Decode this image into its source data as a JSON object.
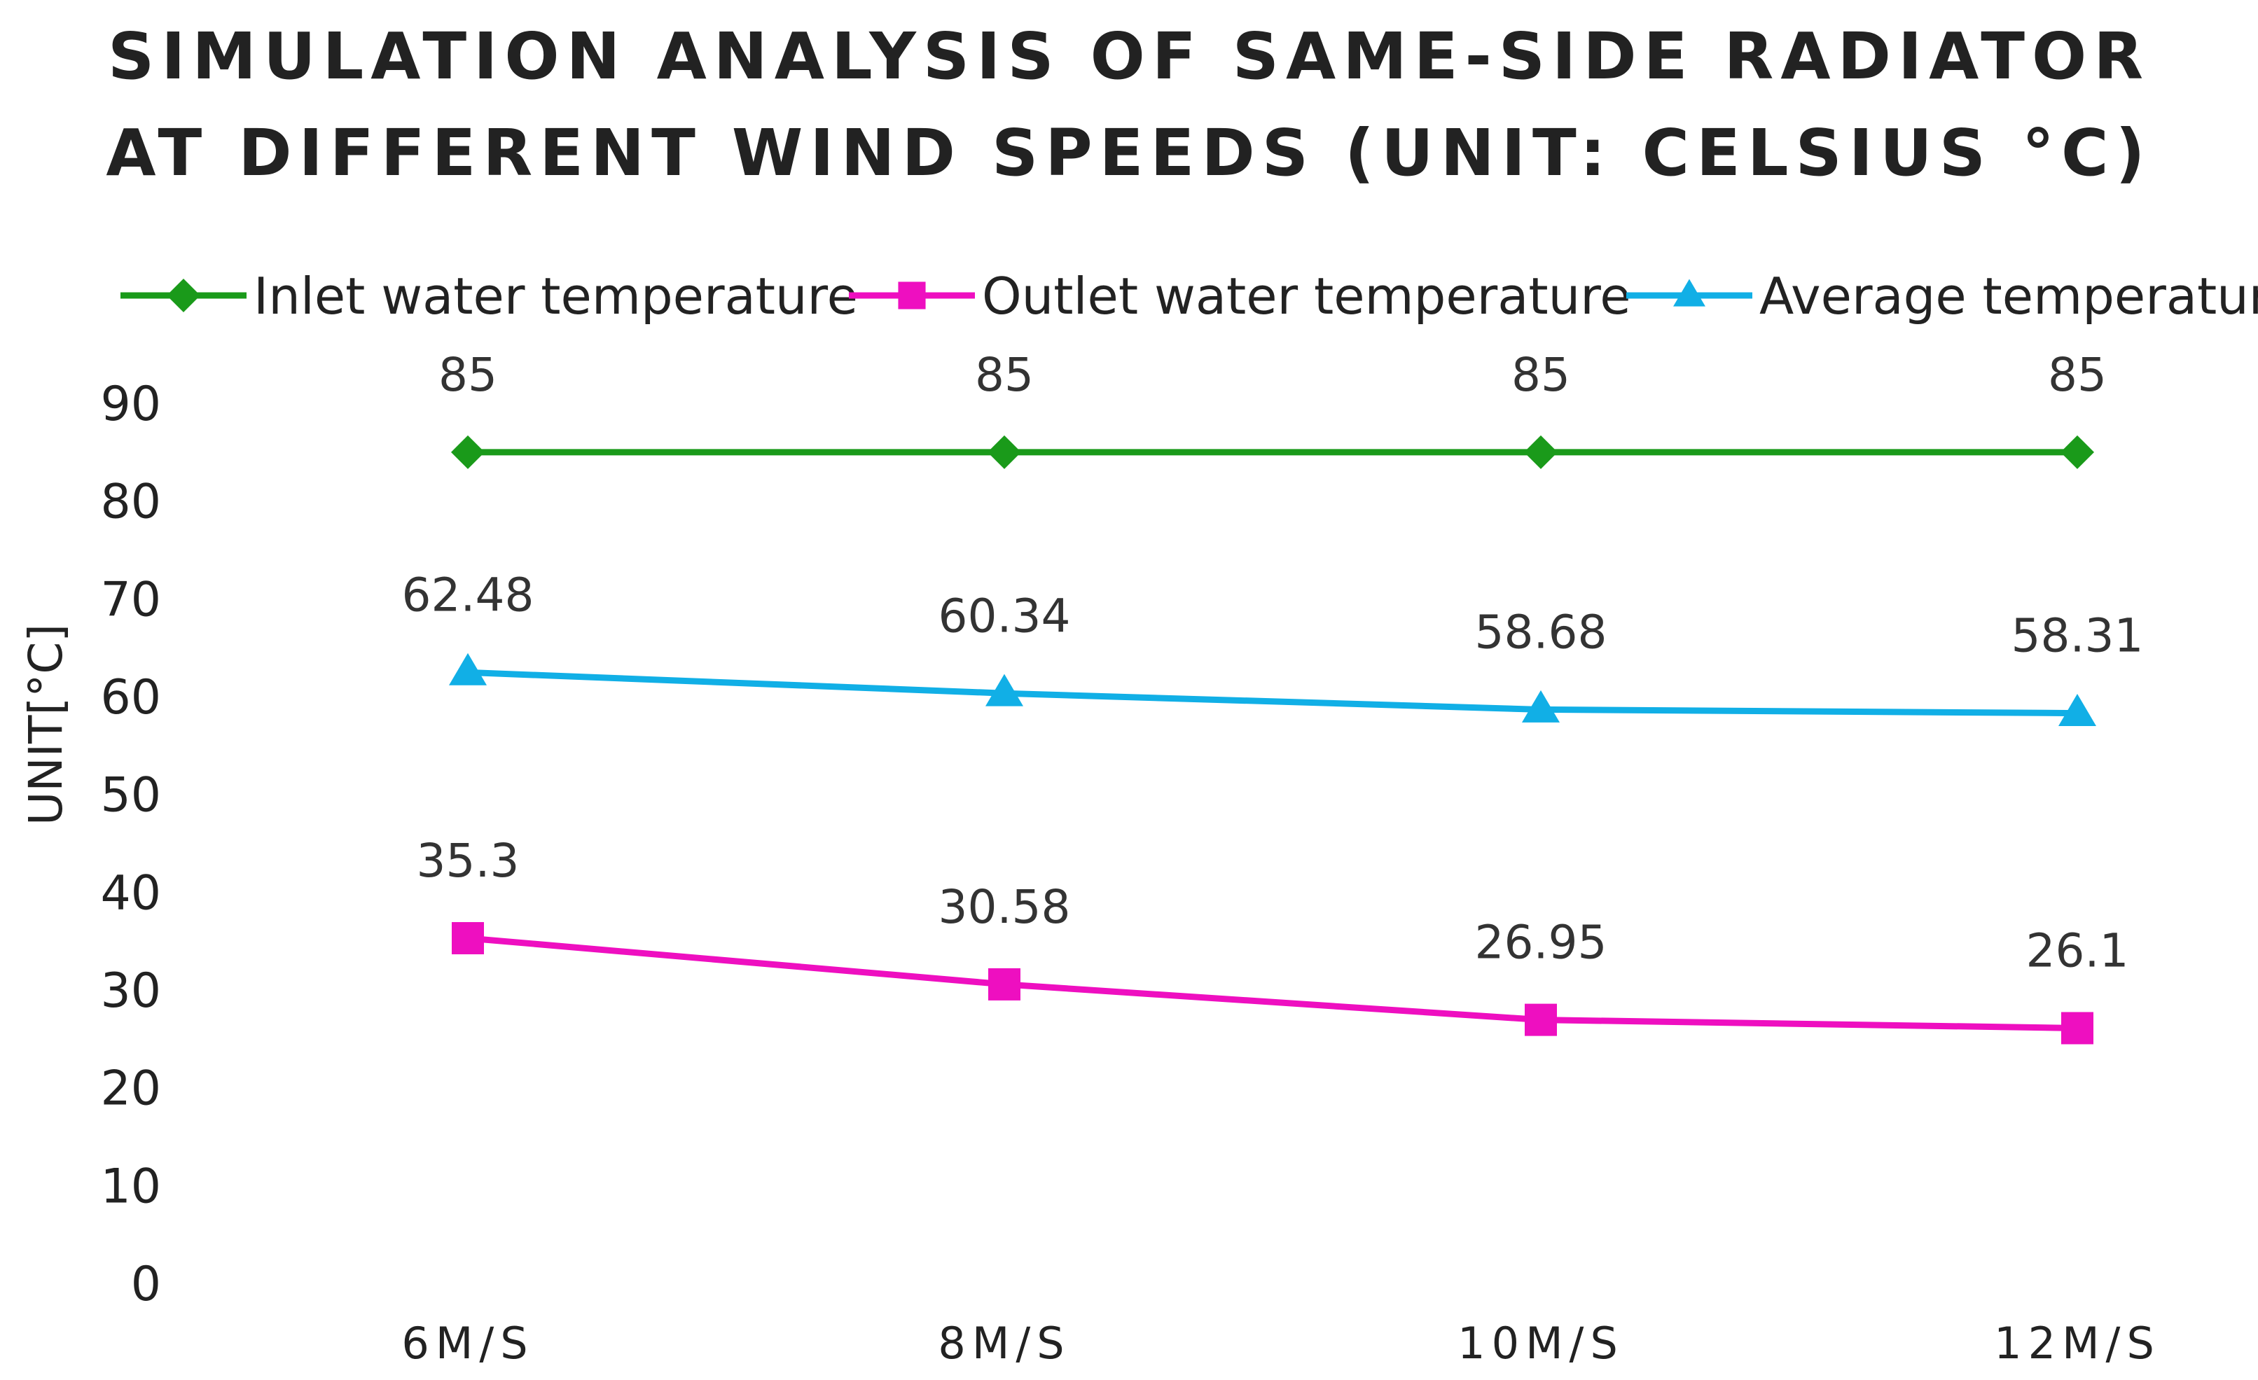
{
  "chart_data": {
    "type": "line",
    "title_lines": [
      "SIMULATION ANALYSIS OF SAME-SIDE RADIATOR",
      "AT DIFFERENT WIND SPEEDS (UNIT: CELSIUS °C)"
    ],
    "categories": [
      "6M/S",
      "8M/S",
      "10M/S",
      "12M/S"
    ],
    "ylabel": "UNIT[°C]",
    "xlabel": "",
    "ylim": [
      0,
      90
    ],
    "yticks": [
      0,
      10,
      20,
      30,
      40,
      50,
      60,
      70,
      80,
      90
    ],
    "grid": false,
    "legend_position": "top",
    "series": [
      {
        "name": "Inlet water temperature",
        "values": [
          85,
          85,
          85,
          85
        ],
        "labels": [
          "85",
          "85",
          "85",
          "85"
        ],
        "color": "#1A9A1A",
        "marker": "diamond"
      },
      {
        "name": "Outlet water temperature",
        "values": [
          35.3,
          30.58,
          26.95,
          26.1
        ],
        "labels": [
          "35.3",
          "30.58",
          "26.95",
          "26.1"
        ],
        "color": "#EE0FC0",
        "marker": "square"
      },
      {
        "name": "Average temperature",
        "values": [
          62.48,
          60.34,
          58.68,
          58.31
        ],
        "labels": [
          "62.48",
          "60.34",
          "58.68",
          "58.31"
        ],
        "color": "#11AFE6",
        "marker": "triangle"
      }
    ]
  }
}
